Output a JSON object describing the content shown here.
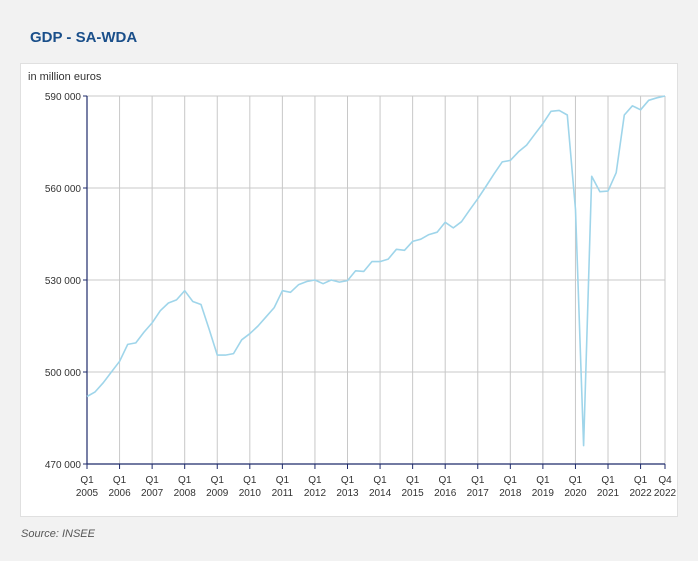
{
  "header": {
    "title": "GDP - SA-WDA"
  },
  "footer": {
    "source": "Source: INSEE"
  },
  "colors": {
    "line": "#9fd5ea",
    "axis": "#1f2b6b",
    "grid": "#c8c8c8",
    "title": "#1a4f8a"
  },
  "chart_data": {
    "type": "line",
    "ylabel": "in million euros",
    "ylim": [
      470000,
      590000
    ],
    "yticks": [
      470000,
      500000,
      530000,
      560000,
      590000
    ],
    "ytick_labels": [
      "470 000",
      "500 000",
      "530 000",
      "560 000",
      "590 000"
    ],
    "xticks": [
      {
        "q": "Q1",
        "y": "2005"
      },
      {
        "q": "Q1",
        "y": "2006"
      },
      {
        "q": "Q1",
        "y": "2007"
      },
      {
        "q": "Q1",
        "y": "2008"
      },
      {
        "q": "Q1",
        "y": "2009"
      },
      {
        "q": "Q1",
        "y": "2010"
      },
      {
        "q": "Q1",
        "y": "2011"
      },
      {
        "q": "Q1",
        "y": "2012"
      },
      {
        "q": "Q1",
        "y": "2013"
      },
      {
        "q": "Q1",
        "y": "2014"
      },
      {
        "q": "Q1",
        "y": "2015"
      },
      {
        "q": "Q1",
        "y": "2016"
      },
      {
        "q": "Q1",
        "y": "2017"
      },
      {
        "q": "Q1",
        "y": "2018"
      },
      {
        "q": "Q1",
        "y": "2019"
      },
      {
        "q": "Q1",
        "y": "2020"
      },
      {
        "q": "Q1",
        "y": "2021"
      },
      {
        "q": "Q1",
        "y": "2022"
      },
      {
        "q": "Q4",
        "y": "2022"
      }
    ],
    "grid": true,
    "series": [
      {
        "values": [
          492000,
          493500,
          496500,
          500000,
          503500,
          509000,
          509500,
          513000,
          516000,
          520000,
          522500,
          523500,
          526500,
          523000,
          522000,
          514000,
          505500,
          505500,
          506000,
          510500,
          512500,
          515000,
          518000,
          521000,
          526500,
          526000,
          528500,
          529500,
          530000,
          528800,
          530000,
          529300,
          529800,
          533000,
          532800,
          536000,
          536000,
          536800,
          540000,
          539700,
          542600,
          543300,
          544800,
          545600,
          548800,
          547000,
          549000,
          552800,
          556500,
          560500,
          564600,
          568500,
          569000,
          571800,
          574000,
          577500,
          581000,
          585000,
          585300,
          583800,
          553000,
          476000,
          563800,
          558800,
          559000,
          565000,
          583800,
          586800,
          585500,
          588600,
          589400,
          590000
        ]
      }
    ]
  }
}
